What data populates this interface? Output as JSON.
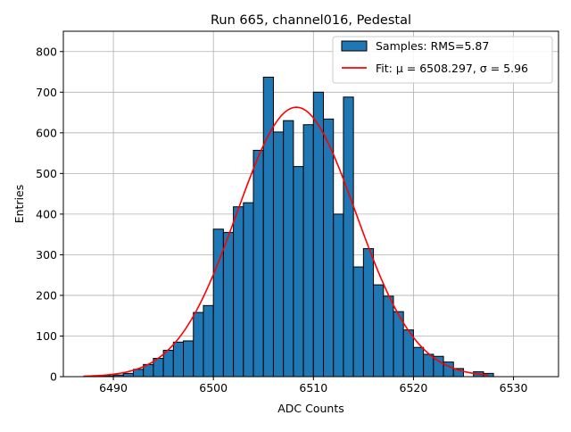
{
  "chart_data": {
    "type": "bar",
    "title": "Run 665, channel016, Pedestal",
    "xlabel": "ADC Counts",
    "ylabel": "Entries",
    "xlim": [
      6485,
      6534.5
    ],
    "ylim": [
      0,
      850
    ],
    "xticks": [
      6490,
      6500,
      6510,
      6520,
      6530
    ],
    "yticks": [
      0,
      100,
      200,
      300,
      400,
      500,
      600,
      700,
      800
    ],
    "grid": true,
    "legend_position": "top-right",
    "bin_width": 1,
    "bins": [
      {
        "x": 6488,
        "count": 2
      },
      {
        "x": 6489,
        "count": 2
      },
      {
        "x": 6490,
        "count": 4
      },
      {
        "x": 6491,
        "count": 8
      },
      {
        "x": 6492,
        "count": 18
      },
      {
        "x": 6493,
        "count": 30
      },
      {
        "x": 6494,
        "count": 45
      },
      {
        "x": 6495,
        "count": 65
      },
      {
        "x": 6496,
        "count": 85
      },
      {
        "x": 6497,
        "count": 88
      },
      {
        "x": 6498,
        "count": 158
      },
      {
        "x": 6499,
        "count": 175
      },
      {
        "x": 6500,
        "count": 363
      },
      {
        "x": 6501,
        "count": 355
      },
      {
        "x": 6502,
        "count": 418
      },
      {
        "x": 6503,
        "count": 428
      },
      {
        "x": 6504,
        "count": 557
      },
      {
        "x": 6505,
        "count": 737
      },
      {
        "x": 6506,
        "count": 602
      },
      {
        "x": 6507,
        "count": 630
      },
      {
        "x": 6508,
        "count": 517
      },
      {
        "x": 6509,
        "count": 620
      },
      {
        "x": 6510,
        "count": 700
      },
      {
        "x": 6511,
        "count": 634
      },
      {
        "x": 6512,
        "count": 400
      },
      {
        "x": 6513,
        "count": 688
      },
      {
        "x": 6514,
        "count": 270
      },
      {
        "x": 6515,
        "count": 315
      },
      {
        "x": 6516,
        "count": 226
      },
      {
        "x": 6517,
        "count": 198
      },
      {
        "x": 6518,
        "count": 160
      },
      {
        "x": 6519,
        "count": 115
      },
      {
        "x": 6520,
        "count": 72
      },
      {
        "x": 6521,
        "count": 55
      },
      {
        "x": 6522,
        "count": 50
      },
      {
        "x": 6523,
        "count": 36
      },
      {
        "x": 6524,
        "count": 20
      },
      {
        "x": 6526,
        "count": 12
      },
      {
        "x": 6527,
        "count": 8
      }
    ],
    "series": [
      {
        "name": "Samples: RMS=5.87",
        "kind": "histogram",
        "color": "#1f77b4",
        "edge_color": "#000000"
      },
      {
        "name": "Fit: μ = 6508.297, σ = 5.96",
        "kind": "gaussian",
        "color": "#ff0000",
        "mu": 6508.297,
        "sigma": 5.96,
        "amplitude": 663,
        "x_range": [
          6487,
          6527.5
        ]
      }
    ]
  }
}
